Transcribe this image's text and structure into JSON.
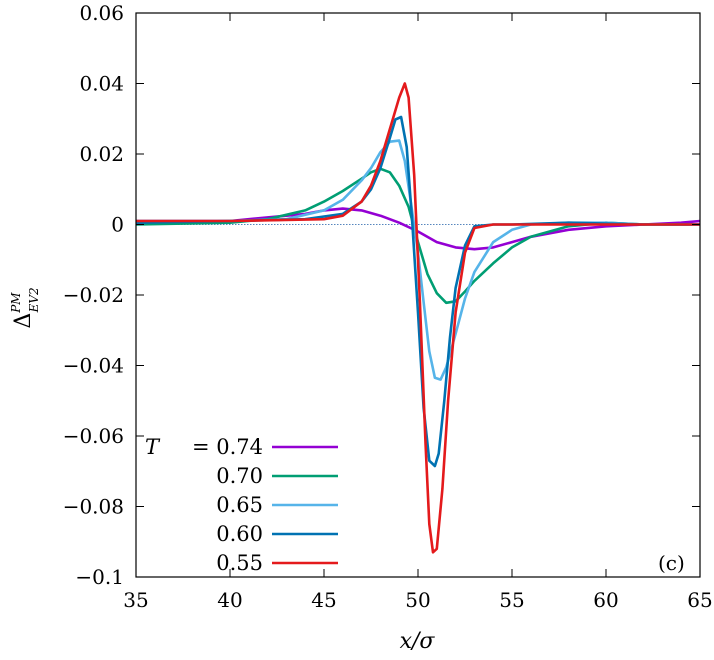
{
  "chart_data": {
    "type": "line",
    "xlabel": "x/σ",
    "ylabel": "Δ",
    "ylabel_sup": "PM",
    "ylabel_sub": "EV2",
    "xlim": [
      35,
      65
    ],
    "ylim": [
      -0.1,
      0.06
    ],
    "x_ticks": [
      35,
      40,
      45,
      50,
      55,
      60,
      65
    ],
    "x_tick_labels": [
      "35",
      "40",
      "45",
      "50",
      "55",
      "60",
      "65"
    ],
    "y_ticks": [
      -0.1,
      -0.08,
      -0.06,
      -0.04,
      -0.02,
      0,
      0.02,
      0.04,
      0.06
    ],
    "y_tick_labels": [
      "−0.1",
      "−0.08",
      "−0.06",
      "−0.04",
      "−0.02",
      "0",
      "0.02",
      "0.04",
      "0.06"
    ],
    "zero_line": true,
    "grid": false,
    "legend_position": "bottom-left",
    "panel_label": "(c)",
    "series": [
      {
        "name": "T = 0.74",
        "legend_prefix": "T",
        "legend_value": "= 0.74",
        "color": "#9400D3",
        "x": [
          35,
          40,
          42,
          44,
          45,
          46,
          47,
          48,
          49,
          50,
          51,
          52,
          53,
          54,
          55,
          56,
          58,
          60,
          62,
          64,
          65
        ],
        "y": [
          0.001,
          0.001,
          0.002,
          0.003,
          0.004,
          0.0045,
          0.004,
          0.0025,
          0.0005,
          -0.002,
          -0.005,
          -0.0065,
          -0.007,
          -0.0065,
          -0.005,
          -0.0035,
          -0.0015,
          -0.0005,
          0.0,
          0.0005,
          0.001
        ]
      },
      {
        "name": "0.70",
        "legend_value": "0.70",
        "color": "#009E73",
        "x": [
          35,
          40,
          42,
          44,
          45,
          46,
          47,
          47.5,
          48,
          48.5,
          49,
          49.5,
          50,
          50.5,
          51,
          51.5,
          52,
          52.5,
          53,
          54,
          55,
          56,
          58,
          60,
          62,
          65
        ],
        "y": [
          0.0,
          0.0005,
          0.0015,
          0.004,
          0.0065,
          0.0095,
          0.013,
          0.0148,
          0.0158,
          0.0148,
          0.011,
          0.005,
          -0.005,
          -0.014,
          -0.0195,
          -0.0222,
          -0.0218,
          -0.019,
          -0.016,
          -0.011,
          -0.0065,
          -0.0035,
          -0.0005,
          0.0005,
          0.0,
          0.0
        ]
      },
      {
        "name": "0.65",
        "legend_value": "0.65",
        "color": "#56B4E9",
        "x": [
          35,
          40,
          43,
          45,
          46,
          47,
          47.5,
          48,
          48.5,
          49,
          49.3,
          49.6,
          50,
          50.3,
          50.6,
          50.9,
          51.2,
          51.5,
          52,
          52.5,
          53,
          54,
          55,
          56,
          58,
          60,
          62,
          65
        ],
        "y": [
          0.001,
          0.001,
          0.0015,
          0.004,
          0.007,
          0.0125,
          0.016,
          0.0205,
          0.0235,
          0.0238,
          0.018,
          0.007,
          -0.008,
          -0.022,
          -0.036,
          -0.0435,
          -0.044,
          -0.0405,
          -0.031,
          -0.021,
          -0.0135,
          -0.005,
          -0.0015,
          0.0,
          0.0005,
          0.0005,
          0.0,
          0.0
        ]
      },
      {
        "name": "0.60",
        "legend_value": "0.60",
        "color": "#0072B2",
        "x": [
          35,
          40,
          44,
          46,
          47,
          47.5,
          48,
          48.5,
          48.8,
          49.1,
          49.4,
          49.7,
          50,
          50.3,
          50.6,
          50.9,
          51.1,
          51.4,
          51.7,
          52,
          52.5,
          53,
          54,
          55,
          58,
          62,
          65
        ],
        "y": [
          0.0005,
          0.001,
          0.0015,
          0.003,
          0.0065,
          0.01,
          0.016,
          0.0245,
          0.0298,
          0.0305,
          0.022,
          0.0,
          -0.025,
          -0.052,
          -0.067,
          -0.0685,
          -0.065,
          -0.05,
          -0.032,
          -0.018,
          -0.006,
          -0.0005,
          0.0,
          0.0,
          0.0005,
          0.0,
          0.0
        ]
      },
      {
        "name": "0.55",
        "legend_value": "0.55",
        "color": "#E41A1C",
        "x": [
          35,
          40,
          45,
          46,
          47,
          47.5,
          48,
          48.5,
          49,
          49.3,
          49.5,
          49.8,
          50.1,
          50.4,
          50.6,
          50.8,
          51.0,
          51.3,
          51.6,
          52,
          52.5,
          53,
          54,
          58,
          62,
          65
        ],
        "y": [
          0.001,
          0.001,
          0.0015,
          0.0025,
          0.0065,
          0.011,
          0.018,
          0.027,
          0.036,
          0.04,
          0.036,
          0.014,
          -0.022,
          -0.062,
          -0.085,
          -0.093,
          -0.092,
          -0.075,
          -0.05,
          -0.025,
          -0.008,
          -0.001,
          0.0,
          0.0,
          0.0,
          0.0
        ]
      }
    ]
  }
}
